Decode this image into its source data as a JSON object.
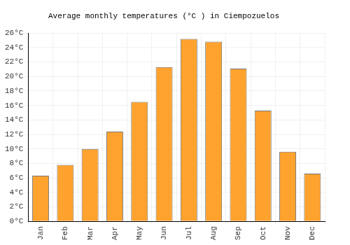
{
  "chart_data": {
    "type": "bar",
    "title": "Average monthly temperatures (°C ) in Ciempozuelos",
    "categories": [
      "Jan",
      "Feb",
      "Mar",
      "Apr",
      "May",
      "Jun",
      "Jul",
      "Aug",
      "Sep",
      "Oct",
      "Nov",
      "Dec"
    ],
    "values": [
      6.3,
      7.8,
      10.0,
      12.4,
      16.5,
      21.3,
      25.2,
      24.8,
      21.1,
      15.3,
      9.6,
      6.6
    ],
    "color": "#ffa22e",
    "ylim": [
      0,
      26
    ],
    "yticks": [
      {
        "value": 0,
        "label": "0°C"
      },
      {
        "value": 2,
        "label": "2°C"
      },
      {
        "value": 4,
        "label": "4°C"
      },
      {
        "value": 6,
        "label": "6°C"
      },
      {
        "value": 8,
        "label": "8°C"
      },
      {
        "value": 10,
        "label": "10°C"
      },
      {
        "value": 12,
        "label": "12°C"
      },
      {
        "value": 14,
        "label": "14°C"
      },
      {
        "value": 16,
        "label": "16°C"
      },
      {
        "value": 18,
        "label": "18°C"
      },
      {
        "value": 20,
        "label": "20°C"
      },
      {
        "value": 22,
        "label": "22°C"
      },
      {
        "value": 24,
        "label": "24°C"
      },
      {
        "value": 26,
        "label": "26°C"
      }
    ],
    "grid": true
  }
}
